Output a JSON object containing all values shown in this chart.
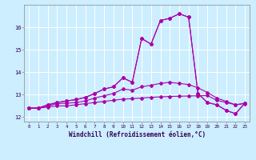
{
  "title": "",
  "xlabel": "Windchill (Refroidissement éolien,°C)",
  "ylabel": "",
  "bg_color": "#cceeff",
  "grid_color": "#ffffff",
  "line_color": "#aa00aa",
  "xlim": [
    -0.5,
    23.5
  ],
  "ylim": [
    11.8,
    17.0
  ],
  "yticks": [
    12,
    13,
    14,
    15,
    16
  ],
  "xticks": [
    0,
    1,
    2,
    3,
    4,
    5,
    6,
    7,
    8,
    9,
    10,
    11,
    12,
    13,
    14,
    15,
    16,
    17,
    18,
    19,
    20,
    21,
    22,
    23
  ],
  "series": [
    [
      12.4,
      12.4,
      12.45,
      12.5,
      12.5,
      12.55,
      12.6,
      12.65,
      12.7,
      12.75,
      12.8,
      12.82,
      12.85,
      12.88,
      12.9,
      12.92,
      12.93,
      12.94,
      12.95,
      12.96,
      12.75,
      12.65,
      12.55,
      12.6
    ],
    [
      12.4,
      12.4,
      12.5,
      12.6,
      12.62,
      12.65,
      12.72,
      12.85,
      12.95,
      13.05,
      13.25,
      13.2,
      13.35,
      13.42,
      13.5,
      13.55,
      13.5,
      13.45,
      13.3,
      13.1,
      12.85,
      12.7,
      12.55,
      12.62
    ],
    [
      12.4,
      12.4,
      12.55,
      12.65,
      12.72,
      12.78,
      12.88,
      13.05,
      13.25,
      13.35,
      13.75,
      13.55,
      15.5,
      15.25,
      16.3,
      16.4,
      16.6,
      16.45,
      13.05,
      12.65,
      12.55,
      12.3,
      12.15,
      12.62
    ],
    [
      12.4,
      12.4,
      12.55,
      12.65,
      12.72,
      12.78,
      12.88,
      13.05,
      13.25,
      13.35,
      13.75,
      13.55,
      15.5,
      15.25,
      16.3,
      16.4,
      16.6,
      16.45,
      13.05,
      12.65,
      12.55,
      12.3,
      12.15,
      12.62
    ]
  ]
}
